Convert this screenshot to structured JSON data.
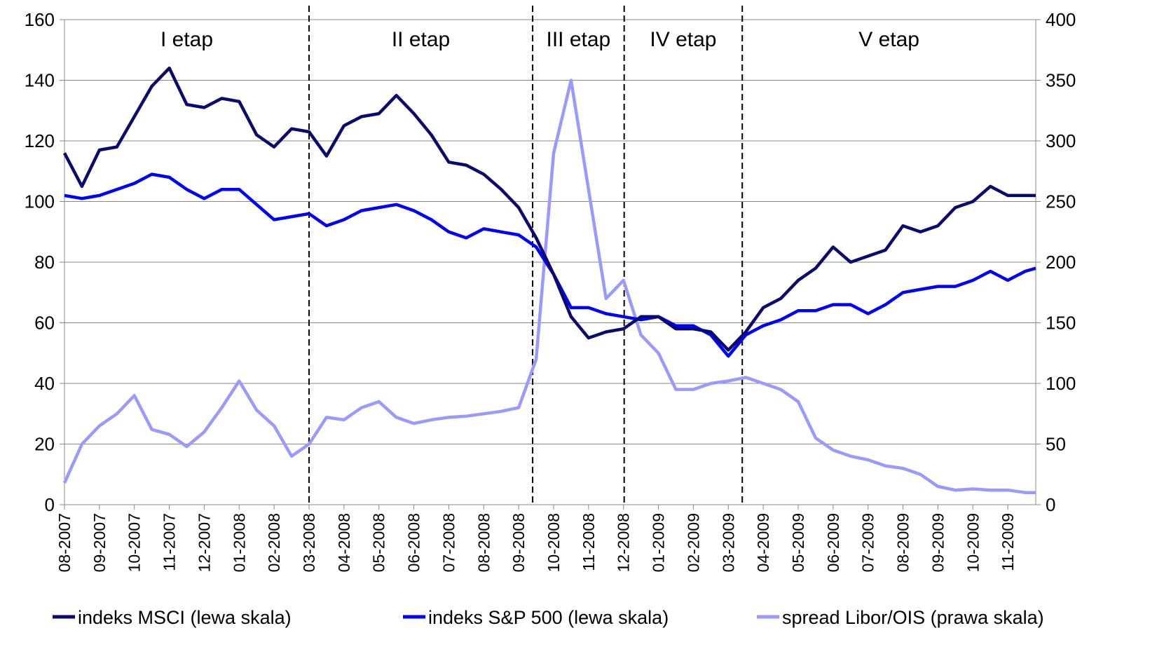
{
  "chart_data": {
    "type": "line",
    "x": [
      0,
      0.5,
      1,
      1.5,
      2,
      2.5,
      3,
      3.5,
      4,
      4.5,
      5,
      5.5,
      6,
      6.5,
      7,
      7.5,
      8,
      8.5,
      9,
      9.5,
      10,
      10.5,
      11,
      11.5,
      12,
      12.5,
      13,
      13.5,
      14,
      14.5,
      15,
      15.5,
      16,
      16.5,
      17,
      17.5,
      18,
      18.5,
      19,
      19.5,
      20,
      20.5,
      21,
      21.5,
      22,
      22.5,
      23,
      23.5,
      24,
      24.5,
      25,
      25.5,
      26,
      26.5,
      27,
      27.5,
      27.8
    ],
    "xlim": [
      0,
      27.8
    ],
    "xticks": [
      {
        "value": 0,
        "label": "08-2007"
      },
      {
        "value": 1,
        "label": "09-2007"
      },
      {
        "value": 2,
        "label": "10-2007"
      },
      {
        "value": 3,
        "label": "11-2007"
      },
      {
        "value": 4,
        "label": "12-2007"
      },
      {
        "value": 5,
        "label": "01-2008"
      },
      {
        "value": 6,
        "label": "02-2008"
      },
      {
        "value": 7,
        "label": "03-2008"
      },
      {
        "value": 8,
        "label": "04-2008"
      },
      {
        "value": 9,
        "label": "05-2008"
      },
      {
        "value": 10,
        "label": "06-2008"
      },
      {
        "value": 11,
        "label": "07-2008"
      },
      {
        "value": 12,
        "label": "08-2008"
      },
      {
        "value": 13,
        "label": "09-2008"
      },
      {
        "value": 14,
        "label": "10-2008"
      },
      {
        "value": 15,
        "label": "11-2008"
      },
      {
        "value": 16,
        "label": "12-2008"
      },
      {
        "value": 17,
        "label": "01-2009"
      },
      {
        "value": 18,
        "label": "02-2009"
      },
      {
        "value": 19,
        "label": "03-2009"
      },
      {
        "value": 20,
        "label": "04-2009"
      },
      {
        "value": 21,
        "label": "05-2009"
      },
      {
        "value": 22,
        "label": "06-2009"
      },
      {
        "value": 23,
        "label": "07-2009"
      },
      {
        "value": 24,
        "label": "08-2009"
      },
      {
        "value": 25,
        "label": "09-2009"
      },
      {
        "value": 26,
        "label": "10-2009"
      },
      {
        "value": 27,
        "label": "11-2009"
      }
    ],
    "ylim": [
      0,
      160
    ],
    "yticks": [
      0,
      20,
      40,
      60,
      80,
      100,
      120,
      140,
      160
    ],
    "y2lim": [
      0,
      400
    ],
    "y2ticks": [
      0,
      50,
      100,
      150,
      200,
      250,
      300,
      350,
      400
    ],
    "grid": true,
    "dividers": [
      7,
      13.4,
      16.02,
      19.4
    ],
    "stage_labels": [
      "I etap",
      "II etap",
      "III etap",
      "IV etap",
      "V etap"
    ],
    "series": [
      {
        "name": "indeks MSCI (lewa skala)",
        "color": "#0a0a6e",
        "values": [
          116,
          105,
          117,
          118,
          128,
          138,
          144,
          132,
          131,
          134,
          133,
          122,
          118,
          124,
          123,
          115,
          125,
          128,
          129,
          135,
          129,
          122,
          113,
          112,
          109,
          104,
          98,
          88,
          76,
          62,
          55,
          57,
          58,
          62,
          62,
          58,
          58,
          57,
          51,
          57,
          65,
          68,
          74,
          78,
          85,
          80,
          82,
          84,
          92,
          90,
          92,
          98,
          100,
          105,
          102,
          102,
          102
        ]
      },
      {
        "name": "indeks S&P 500 (lewa skala)",
        "color": "#0000ff",
        "values": [
          102,
          101,
          102,
          104,
          106,
          109,
          108,
          104,
          101,
          104,
          104,
          99,
          94,
          95,
          96,
          92,
          94,
          97,
          98,
          99,
          97,
          94,
          90,
          88,
          91,
          90,
          89,
          85,
          76,
          65,
          65,
          63,
          62,
          61,
          62,
          59,
          59,
          56,
          49,
          56,
          59,
          61,
          64,
          64,
          66,
          66,
          63,
          66,
          70,
          71,
          72,
          72,
          74,
          77,
          74,
          77,
          78
        ]
      },
      {
        "name": "spread Libor/OIS (prawa skala)",
        "color": "#9999ff",
        "axis": "y2",
        "values": [
          18,
          50,
          65,
          75,
          90,
          62,
          58,
          48,
          60,
          80,
          102,
          78,
          65,
          40,
          50,
          72,
          70,
          80,
          85,
          72,
          67,
          70,
          72,
          73,
          75,
          77,
          80,
          120,
          290,
          350,
          260,
          170,
          185,
          140,
          125,
          95,
          95,
          100,
          102,
          105,
          100,
          95,
          85,
          55,
          45,
          40,
          37,
          32,
          30,
          25,
          15,
          12,
          13,
          12,
          12,
          10,
          10
        ]
      }
    ]
  }
}
